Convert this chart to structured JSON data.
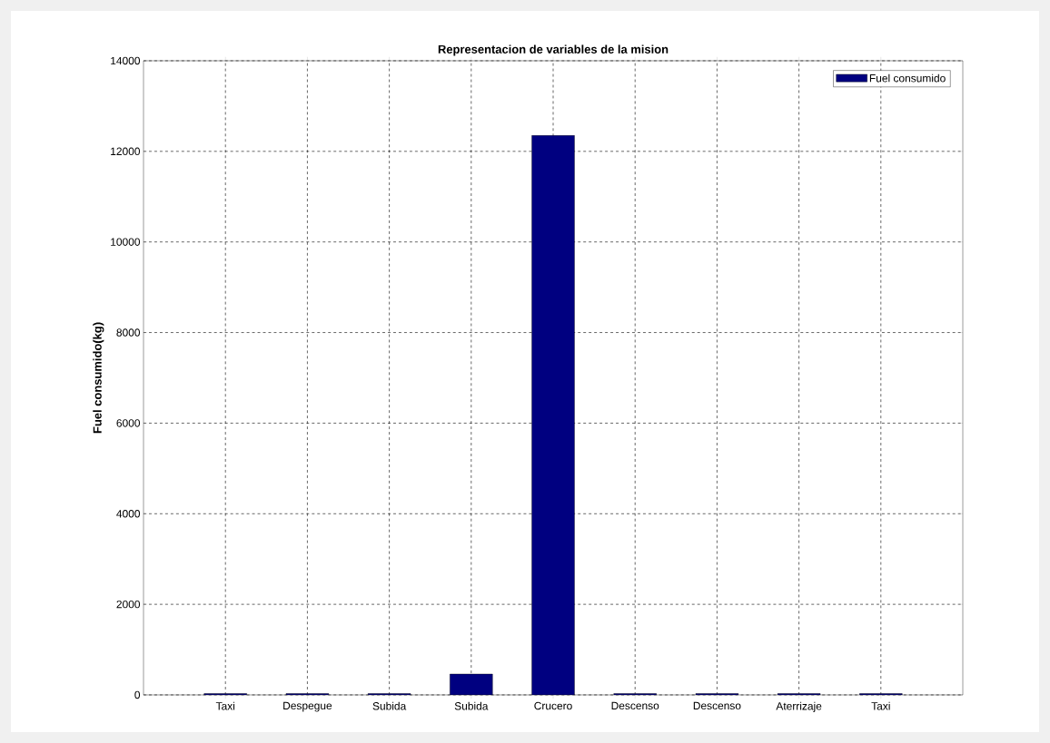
{
  "chart_data": {
    "type": "bar",
    "title": "Representacion de variables de la mision",
    "ylabel": "Fuel consumido(kg)",
    "categories": [
      "Taxi",
      "Despegue",
      "Subida",
      "Subida",
      "Crucero",
      "Descenso",
      "Descenso",
      "Aterrizaje",
      "Taxi"
    ],
    "series": [
      {
        "name": "Fuel consumido",
        "color": "#000080",
        "values": [
          30,
          30,
          30,
          460,
          12350,
          30,
          30,
          30,
          30
        ]
      }
    ],
    "ylim": [
      0,
      14000
    ],
    "yticks": [
      0,
      2000,
      4000,
      6000,
      8000,
      10000,
      12000,
      14000
    ],
    "grid": true,
    "legend": "top right"
  }
}
